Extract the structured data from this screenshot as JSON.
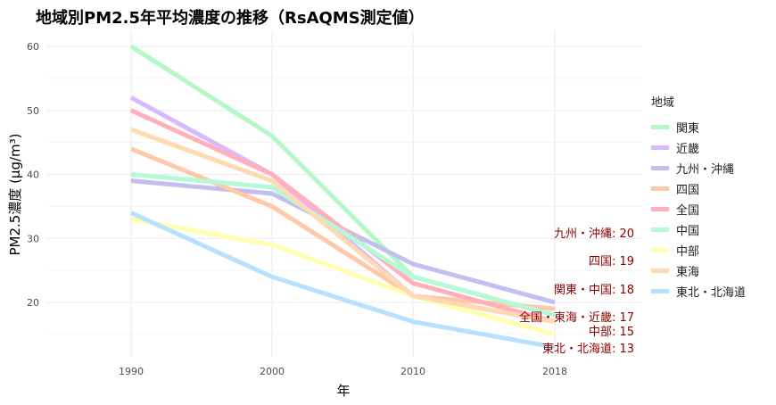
{
  "chart_data": {
    "type": "line",
    "title": "地域別PM2.5年平均濃度の推移（RsAQMS測定値）",
    "xlabel": "年",
    "ylabel": "PM2.5濃度 (μg/m³)",
    "categories": [
      "1990",
      "2000",
      "2010",
      "2018"
    ],
    "ylim": [
      11,
      63
    ],
    "yticks": [
      20,
      30,
      40,
      50,
      60
    ],
    "grid": true,
    "legend_title": "地域",
    "legend_position": "right",
    "series": [
      {
        "name": "関東",
        "color": "#b3f8c6",
        "values": [
          60,
          46,
          24,
          18
        ]
      },
      {
        "name": "近畿",
        "color": "#d8b8ff",
        "values": [
          52,
          40,
          21,
          17
        ]
      },
      {
        "name": "九州・沖縄",
        "color": "#c3c0f0",
        "values": [
          39,
          37,
          26,
          20
        ]
      },
      {
        "name": "四国",
        "color": "#ffc8a8",
        "values": [
          44,
          35,
          21,
          19
        ]
      },
      {
        "name": "全国",
        "color": "#ffb0ba",
        "values": [
          50,
          40,
          23,
          17
        ]
      },
      {
        "name": "中国",
        "color": "#b6f9d8",
        "values": [
          40,
          38,
          24,
          18
        ]
      },
      {
        "name": "中部",
        "color": "#ffffb0",
        "values": [
          33,
          29,
          21,
          15
        ]
      },
      {
        "name": "東海",
        "color": "#ffd9b0",
        "values": [
          47,
          39,
          21,
          17
        ]
      },
      {
        "name": "東北・北海道",
        "color": "#b8e0ff",
        "values": [
          34,
          24,
          17,
          13
        ]
      }
    ],
    "annotations": [
      {
        "text": "九州・沖縄: 20",
        "y": 20
      },
      {
        "text": "四国: 19",
        "y": 19
      },
      {
        "text": "関東・中国: 18",
        "y": 18
      },
      {
        "text": "全国・東海・近畿: 17",
        "y": 17
      },
      {
        "text": "中部: 15",
        "y": 15
      },
      {
        "text": "東北・北海道: 13",
        "y": 13
      }
    ],
    "annotation_color": "#8b0000"
  }
}
